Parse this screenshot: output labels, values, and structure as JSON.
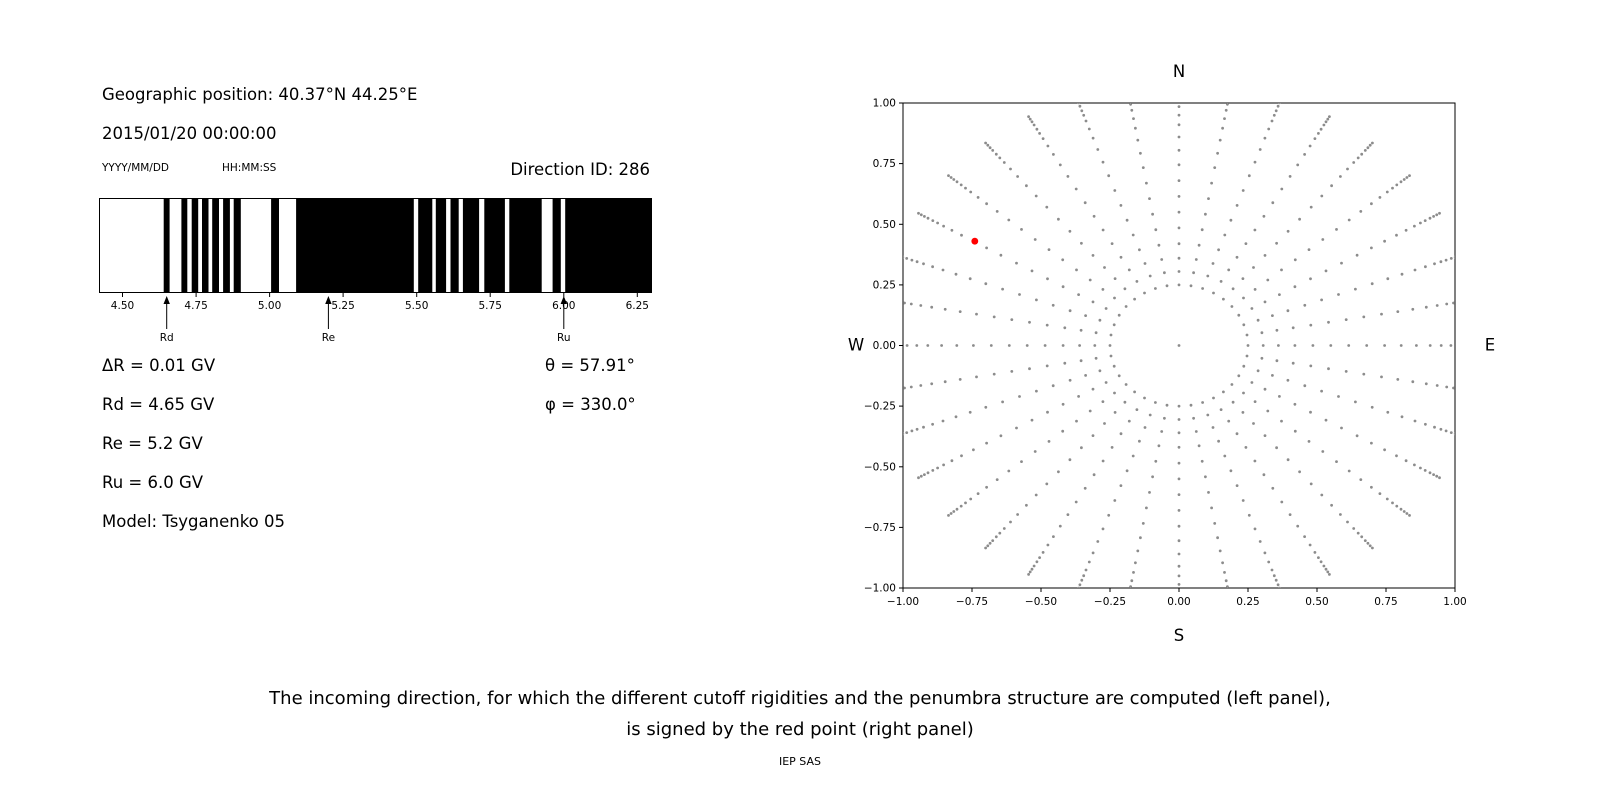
{
  "left_panel": {
    "geo_position": "Geographic position: 40.37°N 44.25°E",
    "datetime": "2015/01/20 00:00:00",
    "date_format_label": "YYYY/MM/DD",
    "time_format_label": "HH:MM:SS",
    "direction_id": "Direction ID: 286",
    "params": {
      "delta_r": "ΔR = 0.01 GV",
      "rd": "Rd = 4.65 GV",
      "re": "Re = 5.2 GV",
      "ru": "Ru = 6.0 GV",
      "model": "Model: Tsyganenko 05",
      "theta": "θ = 57.91°",
      "phi": "φ = 330.0°"
    }
  },
  "caption": {
    "line1": "The incoming direction, for which the different cutoff rigidities and the penumbra structure are computed (left panel),",
    "line2": "is signed by the red point (right panel)",
    "credit": "IEP SAS"
  },
  "chart_data": [
    {
      "type": "bar",
      "name": "penumbra-barcode",
      "xlim": [
        4.42,
        6.3
      ],
      "xtick_values": [
        4.5,
        4.75,
        5.0,
        5.25,
        5.5,
        5.75,
        6.0,
        6.25
      ],
      "xtick_labels": [
        "4.50",
        "4.75",
        "5.00",
        "5.25",
        "5.50",
        "5.75",
        "6.00",
        "6.25"
      ],
      "bar_color": "#000000",
      "forbidden_bands_gv": [
        [
          4.64,
          4.66
        ],
        [
          4.7,
          4.72
        ],
        [
          4.735,
          4.757
        ],
        [
          4.77,
          4.792
        ],
        [
          4.805,
          4.828
        ],
        [
          4.842,
          4.865
        ],
        [
          4.878,
          4.902
        ],
        [
          5.005,
          5.032
        ],
        [
          5.09,
          5.49
        ],
        [
          5.505,
          5.553
        ],
        [
          5.565,
          5.6
        ],
        [
          5.615,
          5.643
        ],
        [
          5.657,
          5.712
        ],
        [
          5.73,
          5.8
        ],
        [
          5.815,
          5.925
        ],
        [
          5.962,
          5.99
        ],
        [
          6.005,
          6.3
        ]
      ],
      "markers": [
        {
          "label": "Rd",
          "x": 4.65
        },
        {
          "label": "Re",
          "x": 5.2
        },
        {
          "label": "Ru",
          "x": 6.0
        }
      ]
    },
    {
      "type": "scatter",
      "name": "incoming-direction-map",
      "xlim": [
        -1.0,
        1.0
      ],
      "ylim": [
        -1.0,
        1.0
      ],
      "xtick_values": [
        -1.0,
        -0.75,
        -0.5,
        -0.25,
        0.0,
        0.25,
        0.5,
        0.75,
        1.0
      ],
      "xtick_labels": [
        "−1.00",
        "−0.75",
        "−0.50",
        "−0.25",
        "0.00",
        "0.25",
        "0.50",
        "0.75",
        "1.00"
      ],
      "ytick_values": [
        1.0,
        0.75,
        0.5,
        0.25,
        0.0,
        -0.25,
        -0.5,
        -0.75,
        -1.0
      ],
      "ytick_labels": [
        "1.00",
        "0.75",
        "0.50",
        "0.25",
        "0.00",
        "−0.25",
        "−0.50",
        "−0.75",
        "−1.00"
      ],
      "compass": {
        "top": "N",
        "bottom": "S",
        "left": "W",
        "right": "E"
      },
      "grid_dots": {
        "spoke_count": 36,
        "spoke_angle_step_deg": 10,
        "radial_stations": [
          0.25,
          0.305,
          0.36,
          0.42,
          0.485,
          0.55,
          0.615,
          0.68,
          0.745,
          0.805,
          0.86,
          0.91,
          0.95,
          0.985,
          1.01,
          1.03,
          1.05,
          1.065,
          1.078,
          1.09
        ],
        "center_dot": true,
        "color": "#8c8c8c",
        "dot_radius_px": 1.4
      },
      "selected_direction": {
        "x": -0.74,
        "y": 0.43,
        "color": "#ff0000"
      }
    }
  ]
}
